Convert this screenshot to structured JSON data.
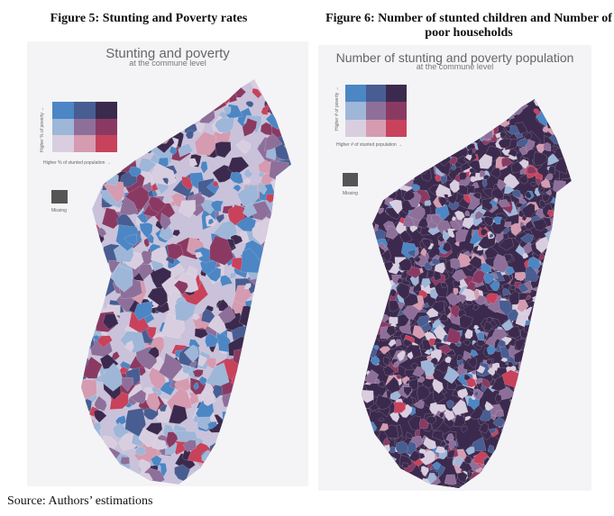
{
  "figures": [
    {
      "caption": "Figure 5: Stunting and Poverty rates",
      "map_title": "Stunting and poverty",
      "map_subtitle": "at the commune level",
      "legend_y_label": "Higher % of poverty →",
      "legend_x_label": "Higher % of stunted population →",
      "missing_label": "Missing"
    },
    {
      "caption": "Figure 6: Number of stunted children and Number of poor households",
      "map_title": "Number of stunting and poverty population",
      "map_subtitle": "at the commune level",
      "legend_y_label": "Higher # of poverty →",
      "legend_x_label": "Higher # of stunted population →",
      "missing_label": "Missing"
    }
  ],
  "legend_colors": [
    [
      "#4c86c4",
      "#485d92",
      "#3c2a4e"
    ],
    [
      "#9eb6d8",
      "#8e6f9a",
      "#8a3a62"
    ],
    [
      "#d9cee0",
      "#d59bb0",
      "#c8425c"
    ]
  ],
  "missing_color": "#555555",
  "source": "Source: Authors’ estimations"
}
